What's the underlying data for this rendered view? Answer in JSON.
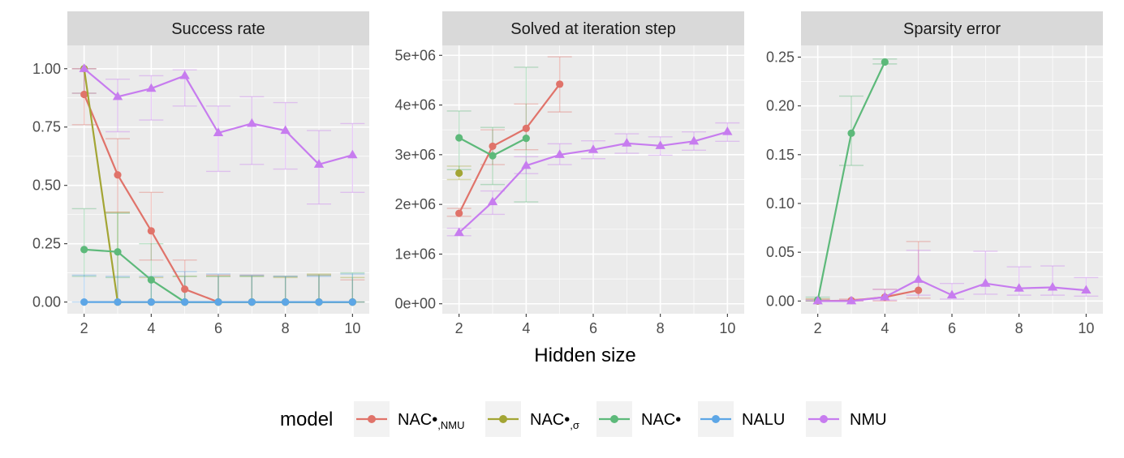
{
  "figure": {
    "xlabel": "Hidden size",
    "legend_title": "model"
  },
  "colors": {
    "NAC•,NMU": "#E0736A",
    "NAC•,σ": "#A3A534",
    "NAC•": "#5DB97A",
    "NALU": "#5DA6E6",
    "NMU": "#C77CEF",
    "panel_bg": "#EBEBEB",
    "strip_bg": "#D9D9D9",
    "grid": "#FFFFFF"
  },
  "legend": [
    {
      "key": "nac_nmu",
      "main": "NAC•",
      "sub": ",NMU",
      "series": "NAC•,NMU",
      "marker": "circle"
    },
    {
      "key": "nac_sigma",
      "main": "NAC•",
      "sub": ",σ",
      "series": "NAC•,σ",
      "marker": "circle"
    },
    {
      "key": "nac_mul",
      "main": "NAC•",
      "sub": "",
      "series": "NAC•",
      "marker": "circle"
    },
    {
      "key": "nalu",
      "main": "NALU",
      "sub": "",
      "series": "NALU",
      "marker": "circle"
    },
    {
      "key": "nmu",
      "main": "NMU",
      "sub": "",
      "series": "NMU",
      "marker": "circle"
    }
  ],
  "chart_data": [
    {
      "type": "line",
      "title": "Success rate",
      "xlabel": "Hidden size",
      "ylabel": "",
      "xlim": [
        1.5,
        10.5
      ],
      "ylim": [
        -0.05,
        1.1
      ],
      "xticks": [
        2,
        4,
        6,
        8,
        10
      ],
      "yticks": [
        0.0,
        0.25,
        0.5,
        0.75,
        1.0
      ],
      "ytick_labels": [
        "0.00",
        "0.25",
        "0.50",
        "0.75",
        "1.00"
      ],
      "series": [
        {
          "name": "NAC•,NMU",
          "marker": "circle",
          "points": [
            {
              "x": 2,
              "y": 0.89,
              "lo": 0.76,
              "hi": 1.0
            },
            {
              "x": 3,
              "y": 0.545,
              "lo": 0.385,
              "hi": 0.7
            },
            {
              "x": 4,
              "y": 0.305,
              "lo": 0.18,
              "hi": 0.47
            },
            {
              "x": 5,
              "y": 0.055,
              "lo": 0.0,
              "hi": 0.18
            },
            {
              "x": 6,
              "y": 0.0,
              "lo": 0.0,
              "hi": 0.115
            },
            {
              "x": 7,
              "y": 0.0,
              "lo": 0.0,
              "hi": 0.115
            },
            {
              "x": 8,
              "y": 0.0,
              "lo": 0.0,
              "hi": 0.11
            },
            {
              "x": 9,
              "y": 0.0,
              "lo": 0.0,
              "hi": 0.115
            },
            {
              "x": 10,
              "y": 0.0,
              "lo": 0.0,
              "hi": 0.095
            }
          ]
        },
        {
          "name": "NAC•,σ",
          "marker": "circle",
          "points": [
            {
              "x": 2,
              "y": 1.0,
              "lo": 0.895,
              "hi": 1.0
            },
            {
              "x": 3,
              "y": 0.0,
              "lo": 0.0,
              "hi": 0.385
            },
            {
              "x": 4,
              "y": 0.0,
              "lo": 0.0,
              "hi": 0.105
            },
            {
              "x": 5,
              "y": 0.0,
              "lo": 0.0,
              "hi": 0.11
            },
            {
              "x": 6,
              "y": 0.0,
              "lo": 0.0,
              "hi": 0.11
            },
            {
              "x": 7,
              "y": 0.0,
              "lo": 0.0,
              "hi": 0.11
            },
            {
              "x": 8,
              "y": 0.0,
              "lo": 0.0,
              "hi": 0.105
            },
            {
              "x": 9,
              "y": 0.0,
              "lo": 0.0,
              "hi": 0.12
            },
            {
              "x": 10,
              "y": 0.0,
              "lo": 0.0,
              "hi": 0.105
            }
          ]
        },
        {
          "name": "NAC•",
          "marker": "circle",
          "points": [
            {
              "x": 2,
              "y": 0.225,
              "lo": 0.11,
              "hi": 0.4
            },
            {
              "x": 3,
              "y": 0.215,
              "lo": 0.105,
              "hi": 0.38
            },
            {
              "x": 4,
              "y": 0.095,
              "lo": 0.0,
              "hi": 0.25
            },
            {
              "x": 5,
              "y": 0.0,
              "lo": 0.0,
              "hi": 0.11
            },
            {
              "x": 6,
              "y": 0.0,
              "lo": 0.0,
              "hi": 0.11
            },
            {
              "x": 7,
              "y": 0.0,
              "lo": 0.0,
              "hi": 0.11
            },
            {
              "x": 8,
              "y": 0.0,
              "lo": 0.0,
              "hi": 0.11
            },
            {
              "x": 9,
              "y": 0.0,
              "lo": 0.0,
              "hi": 0.115
            },
            {
              "x": 10,
              "y": 0.0,
              "lo": 0.0,
              "hi": 0.125
            }
          ]
        },
        {
          "name": "NALU",
          "marker": "circle",
          "points": [
            {
              "x": 2,
              "y": 0.0,
              "lo": 0.0,
              "hi": 0.115
            },
            {
              "x": 3,
              "y": 0.0,
              "lo": 0.0,
              "hi": 0.11
            },
            {
              "x": 4,
              "y": 0.0,
              "lo": 0.0,
              "hi": 0.11
            },
            {
              "x": 5,
              "y": 0.0,
              "lo": 0.0,
              "hi": 0.13
            },
            {
              "x": 6,
              "y": 0.0,
              "lo": 0.0,
              "hi": 0.12
            },
            {
              "x": 7,
              "y": 0.0,
              "lo": 0.0,
              "hi": 0.115
            },
            {
              "x": 8,
              "y": 0.0,
              "lo": 0.0,
              "hi": 0.11
            },
            {
              "x": 9,
              "y": 0.0,
              "lo": 0.0,
              "hi": 0.11
            },
            {
              "x": 10,
              "y": 0.0,
              "lo": 0.0,
              "hi": 0.12
            }
          ]
        },
        {
          "name": "NMU",
          "marker": "triangle",
          "points": [
            {
              "x": 2,
              "y": 1.0,
              "lo": 0.895,
              "hi": 1.0
            },
            {
              "x": 3,
              "y": 0.88,
              "lo": 0.73,
              "hi": 0.955
            },
            {
              "x": 4,
              "y": 0.915,
              "lo": 0.78,
              "hi": 0.97
            },
            {
              "x": 5,
              "y": 0.97,
              "lo": 0.84,
              "hi": 0.995
            },
            {
              "x": 6,
              "y": 0.725,
              "lo": 0.56,
              "hi": 0.84
            },
            {
              "x": 7,
              "y": 0.765,
              "lo": 0.59,
              "hi": 0.88
            },
            {
              "x": 8,
              "y": 0.735,
              "lo": 0.57,
              "hi": 0.855
            },
            {
              "x": 9,
              "y": 0.59,
              "lo": 0.42,
              "hi": 0.735
            },
            {
              "x": 10,
              "y": 0.63,
              "lo": 0.47,
              "hi": 0.765
            }
          ]
        }
      ]
    },
    {
      "type": "line",
      "title": "Solved at iteration step",
      "xlabel": "Hidden size",
      "ylabel": "",
      "xlim": [
        1.5,
        10.5
      ],
      "ylim": [
        -200000,
        5200000
      ],
      "xticks": [
        2,
        4,
        6,
        8,
        10
      ],
      "yticks": [
        0,
        1000000,
        2000000,
        3000000,
        4000000,
        5000000
      ],
      "ytick_labels": [
        "0e+00",
        "1e+06",
        "2e+06",
        "3e+06",
        "4e+06",
        "5e+06"
      ],
      "series": [
        {
          "name": "NAC•,NMU",
          "marker": "circle",
          "points": [
            {
              "x": 2,
              "y": 1820000,
              "lo": 1760000,
              "hi": 1920000
            },
            {
              "x": 3,
              "y": 3170000,
              "lo": 2800000,
              "hi": 3500000
            },
            {
              "x": 4,
              "y": 3530000,
              "lo": 3100000,
              "hi": 4020000
            },
            {
              "x": 5,
              "y": 4420000,
              "lo": 3860000,
              "hi": 4970000
            }
          ]
        },
        {
          "name": "NAC•,σ",
          "marker": "circle",
          "points": [
            {
              "x": 2,
              "y": 2630000,
              "lo": 2500000,
              "hi": 2770000
            }
          ]
        },
        {
          "name": "NAC•",
          "marker": "circle",
          "points": [
            {
              "x": 2,
              "y": 3340000,
              "lo": 2700000,
              "hi": 3880000
            },
            {
              "x": 3,
              "y": 2980000,
              "lo": 2400000,
              "hi": 3550000
            },
            {
              "x": 4,
              "y": 3330000,
              "lo": 2050000,
              "hi": 4760000
            }
          ]
        },
        {
          "name": "NALU",
          "marker": "circle",
          "points": []
        },
        {
          "name": "NMU",
          "marker": "triangle",
          "points": [
            {
              "x": 2,
              "y": 1430000,
              "lo": 1370000,
              "hi": 1520000
            },
            {
              "x": 3,
              "y": 2050000,
              "lo": 1800000,
              "hi": 2270000
            },
            {
              "x": 4,
              "y": 2780000,
              "lo": 2620000,
              "hi": 2960000
            },
            {
              "x": 5,
              "y": 3000000,
              "lo": 2800000,
              "hi": 3220000
            },
            {
              "x": 6,
              "y": 3100000,
              "lo": 2920000,
              "hi": 3280000
            },
            {
              "x": 7,
              "y": 3230000,
              "lo": 3030000,
              "hi": 3420000
            },
            {
              "x": 8,
              "y": 3180000,
              "lo": 2990000,
              "hi": 3360000
            },
            {
              "x": 9,
              "y": 3270000,
              "lo": 3090000,
              "hi": 3460000
            },
            {
              "x": 10,
              "y": 3460000,
              "lo": 3270000,
              "hi": 3640000
            }
          ]
        }
      ]
    },
    {
      "type": "line",
      "title": "Sparsity error",
      "xlabel": "Hidden size",
      "ylabel": "",
      "xlim": [
        1.5,
        10.5
      ],
      "ylim": [
        -0.013,
        0.262
      ],
      "xticks": [
        2,
        4,
        6,
        8,
        10
      ],
      "yticks": [
        0.0,
        0.05,
        0.1,
        0.15,
        0.2,
        0.25
      ],
      "ytick_labels": [
        "0.00",
        "0.05",
        "0.10",
        "0.15",
        "0.20",
        "0.25"
      ],
      "series": [
        {
          "name": "NAC•,NMU",
          "marker": "circle",
          "points": [
            {
              "x": 2,
              "y": 0.0,
              "lo": 0.0,
              "hi": 0.002
            },
            {
              "x": 3,
              "y": 0.0005,
              "lo": 0.0,
              "hi": 0.002
            },
            {
              "x": 4,
              "y": 0.004,
              "lo": 0.0,
              "hi": 0.012
            },
            {
              "x": 5,
              "y": 0.011,
              "lo": 0.003,
              "hi": 0.061
            }
          ]
        },
        {
          "name": "NAC•,σ",
          "marker": "circle",
          "points": [
            {
              "x": 2,
              "y": 0.0,
              "lo": 0.0,
              "hi": 0.002
            }
          ]
        },
        {
          "name": "NAC•",
          "marker": "circle",
          "points": [
            {
              "x": 2,
              "y": 0.001,
              "lo": 0.0,
              "hi": 0.004
            },
            {
              "x": 3,
              "y": 0.172,
              "lo": 0.139,
              "hi": 0.21
            },
            {
              "x": 4,
              "y": 0.245,
              "lo": 0.243,
              "hi": 0.248
            }
          ]
        },
        {
          "name": "NALU",
          "marker": "circle",
          "points": []
        },
        {
          "name": "NMU",
          "marker": "triangle",
          "points": [
            {
              "x": 2,
              "y": 0.0,
              "lo": 0.0,
              "hi": 0.001
            },
            {
              "x": 3,
              "y": 0.0,
              "lo": 0.0,
              "hi": 0.001
            },
            {
              "x": 4,
              "y": 0.004,
              "lo": 0.001,
              "hi": 0.012
            },
            {
              "x": 5,
              "y": 0.022,
              "lo": 0.006,
              "hi": 0.052
            },
            {
              "x": 6,
              "y": 0.006,
              "lo": 0.002,
              "hi": 0.018
            },
            {
              "x": 7,
              "y": 0.018,
              "lo": 0.007,
              "hi": 0.051
            },
            {
              "x": 8,
              "y": 0.013,
              "lo": 0.006,
              "hi": 0.035
            },
            {
              "x": 9,
              "y": 0.014,
              "lo": 0.006,
              "hi": 0.036
            },
            {
              "x": 10,
              "y": 0.011,
              "lo": 0.005,
              "hi": 0.024
            }
          ]
        }
      ]
    }
  ]
}
